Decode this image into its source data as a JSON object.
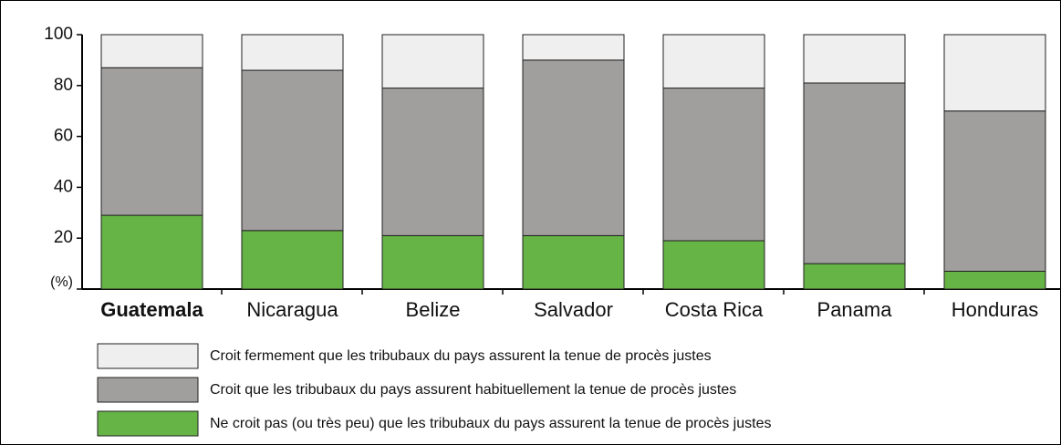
{
  "chart_data": {
    "type": "stacked_bar",
    "categories": [
      "Guatemala",
      "Nicaragua",
      "Belize",
      "Salvador",
      "Costa Rica",
      "Panama",
      "Honduras"
    ],
    "highlighted_category": 0,
    "series": [
      {
        "name": "Ne croit pas (ou très peu) que les tribubaux du pays assurent la tenue de procès justes",
        "color": "#66b445",
        "values": [
          29,
          23,
          21,
          21,
          19,
          10,
          7
        ]
      },
      {
        "name": "Croit que les tribubaux du pays assurent habituellement la tenue de procès justes",
        "color": "#a09f9d",
        "values": [
          58,
          63,
          58,
          69,
          60,
          71,
          63
        ]
      },
      {
        "name": "Croit fermement que les tribubaux du pays assurent la tenue de procès justes",
        "color": "#efefef",
        "values": [
          13,
          14,
          21,
          10,
          21,
          19,
          30
        ]
      }
    ],
    "ylim": [
      0,
      100
    ],
    "yticks": [
      {
        "value": 0,
        "label": "(%)"
      },
      20,
      40,
      60,
      80,
      100
    ],
    "grid": false
  }
}
